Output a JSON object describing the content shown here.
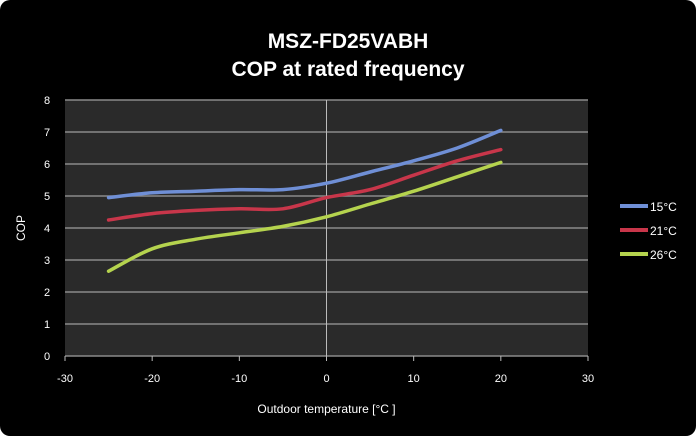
{
  "chart_data": {
    "type": "line",
    "title": "MSZ-FD25VABH",
    "subtitle": "COP  at rated frequency",
    "xlabel": "Outdoor temperature [°C ]",
    "ylabel": "COP",
    "xlim": [
      -30,
      30
    ],
    "ylim": [
      0,
      8
    ],
    "xticks": [
      "-30",
      "-20",
      "-10",
      "0",
      "10",
      "20",
      "30"
    ],
    "yticks": [
      "0",
      "1",
      "2",
      "3",
      "4",
      "5",
      "6",
      "7",
      "8"
    ],
    "grid": true,
    "legend_placement": "right",
    "x": [
      -25,
      -20,
      -15,
      -10,
      -5,
      0,
      5,
      10,
      15,
      20
    ],
    "series": [
      {
        "name": "15°C",
        "color": "#6f8fd6",
        "values": [
          4.95,
          5.1,
          5.15,
          5.2,
          5.2,
          5.4,
          5.75,
          6.1,
          6.5,
          7.05
        ]
      },
      {
        "name": "21°C",
        "color": "#c8364a",
        "values": [
          4.25,
          4.45,
          4.55,
          4.6,
          4.6,
          4.95,
          5.2,
          5.65,
          6.1,
          6.45
        ]
      },
      {
        "name": "26°C",
        "color": "#b5d34e",
        "values": [
          2.65,
          3.35,
          3.65,
          3.85,
          4.05,
          4.35,
          4.75,
          5.15,
          5.6,
          6.05
        ]
      }
    ]
  }
}
